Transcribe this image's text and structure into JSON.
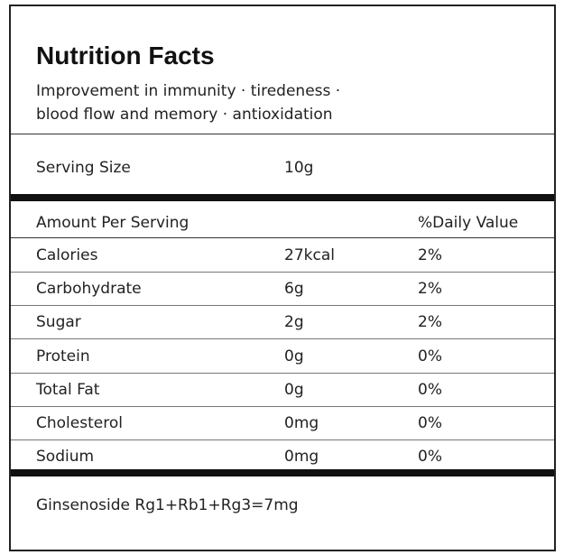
{
  "header": {
    "title": "Nutrition Facts",
    "subtitle": [
      "Improvement in immunity · tiredeness ·",
      "blood flow and memory · antioxidation"
    ]
  },
  "serving": {
    "label": "Serving Size",
    "value": "10g"
  },
  "table": {
    "header": [
      "Amount Per Serving",
      "%Daily Value"
    ],
    "rows": [
      [
        "Calories",
        "27kcal",
        "2%"
      ],
      [
        "Carbohydrate",
        "6g",
        "2%"
      ],
      [
        "Sugar",
        "2g",
        "2%"
      ],
      [
        "Protein",
        "0g",
        "0%"
      ],
      [
        "Total Fat",
        "0g",
        "0%"
      ],
      [
        "Cholesterol",
        "0mg",
        "0%"
      ],
      [
        "Sodium",
        "0mg",
        "0%"
      ]
    ]
  },
  "footnote": "Ginsenoside Rg1+Rb1+Rg3=7mg"
}
